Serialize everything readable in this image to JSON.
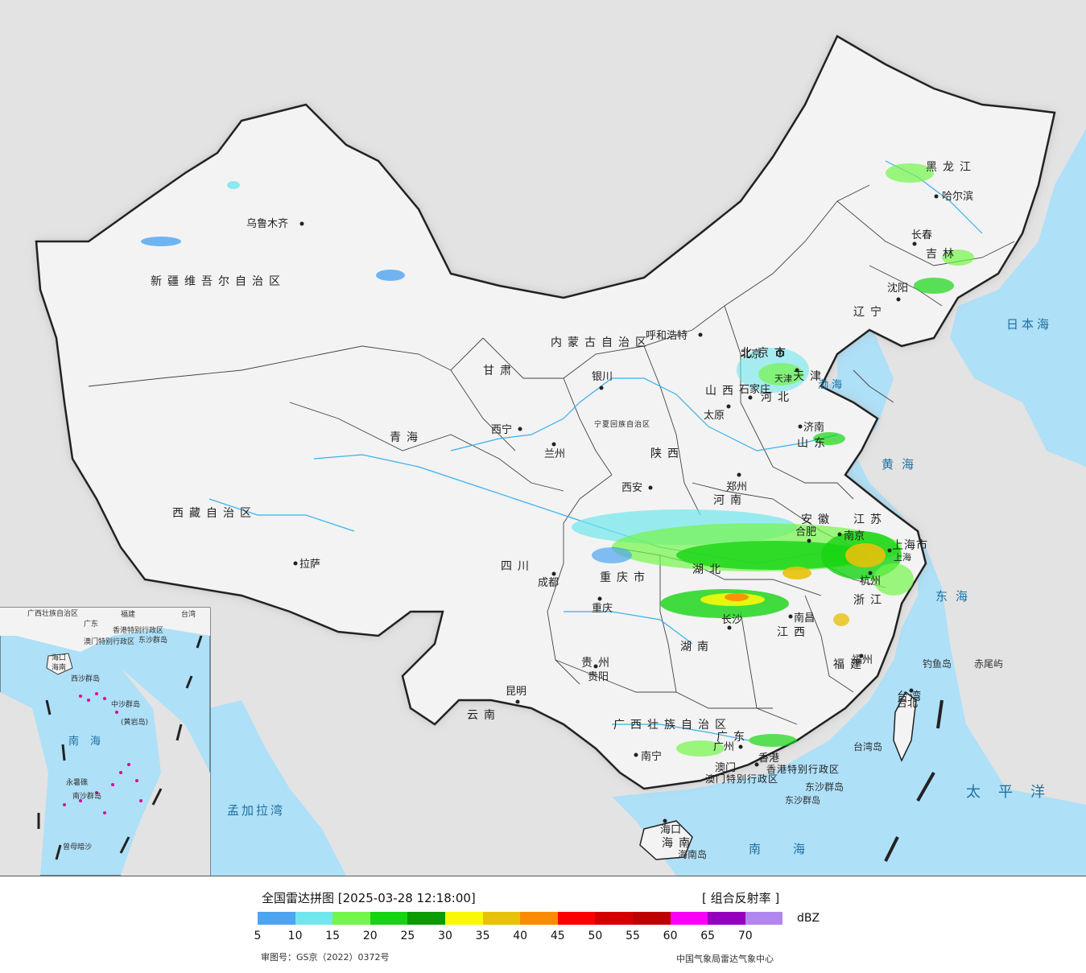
{
  "map": {
    "provinces": [
      "新疆维吾尔自治区",
      "西藏自治区",
      "青海",
      "甘肃",
      "内蒙古自治区",
      "黑龙江",
      "吉林",
      "辽宁",
      "河北",
      "北京市",
      "天津",
      "山西",
      "陕西",
      "宁夏回族自治区",
      "四川",
      "重庆市",
      "云南",
      "贵州",
      "广西壮族自治区",
      "广东",
      "湖南",
      "湖北",
      "河南",
      "山东",
      "江苏",
      "安徽",
      "浙江",
      "江西",
      "福建",
      "台湾",
      "海南",
      "上海市",
      "香港特别行政区",
      "澳门特别行政区"
    ],
    "cities": [
      "乌鲁木齐",
      "拉萨",
      "西宁",
      "兰州",
      "银川",
      "呼和浩特",
      "北京",
      "天津",
      "石家庄",
      "太原",
      "济南",
      "郑州",
      "西安",
      "成都",
      "重庆",
      "贵阳",
      "昆明",
      "南宁",
      "广州",
      "香港",
      "澳门",
      "长沙",
      "南昌",
      "福州",
      "台北",
      "杭州",
      "上海",
      "南京",
      "合肥",
      "沈阳",
      "长春",
      "哈尔滨",
      "海口"
    ],
    "seas": [
      "渤海",
      "黄海",
      "东海",
      "日本海",
      "南海",
      "太平洋",
      "孟加拉湾"
    ],
    "islands": [
      "钓鱼岛",
      "赤尾屿",
      "台湾岛",
      "海南岛",
      "东沙群岛",
      "西沙群岛",
      "中沙群岛",
      "南沙群岛",
      "黄岩岛",
      "曾母暗沙"
    ],
    "inset": {
      "labels": [
        "广西壮族自治区",
        "广东",
        "福建",
        "台湾",
        "香港特别行政区",
        "澳门特别行政区",
        "海口",
        "海南",
        "东沙群岛",
        "西沙群岛",
        "中沙群岛",
        "(黄岩岛)",
        "南沙群岛",
        "永暑礁",
        "曾母暗沙",
        "南海"
      ]
    }
  },
  "legend": {
    "title": "全国雷达拼图 [2025-03-28 12:18:00]",
    "product": "[ 组合反射率 ]",
    "unit": "dBZ",
    "scale": [
      {
        "dbz": "5",
        "color": "#4ea4f0"
      },
      {
        "dbz": "10",
        "color": "#6fe7ec"
      },
      {
        "dbz": "15",
        "color": "#73f54a"
      },
      {
        "dbz": "20",
        "color": "#15d512"
      },
      {
        "dbz": "25",
        "color": "#0a9b05"
      },
      {
        "dbz": "30",
        "color": "#f8f808"
      },
      {
        "dbz": "35",
        "color": "#e8c10b"
      },
      {
        "dbz": "40",
        "color": "#fb8b04"
      },
      {
        "dbz": "45",
        "color": "#fa0000"
      },
      {
        "dbz": "50",
        "color": "#d40000"
      },
      {
        "dbz": "55",
        "color": "#bd0000"
      },
      {
        "dbz": "60",
        "color": "#fb00f8"
      },
      {
        "dbz": "65",
        "color": "#9400bd"
      },
      {
        "dbz": "70",
        "color": "#b187ef"
      }
    ],
    "approval_number": "审图号：GS京（2022）0372号",
    "organization": "中国气象局雷达气象中心"
  }
}
